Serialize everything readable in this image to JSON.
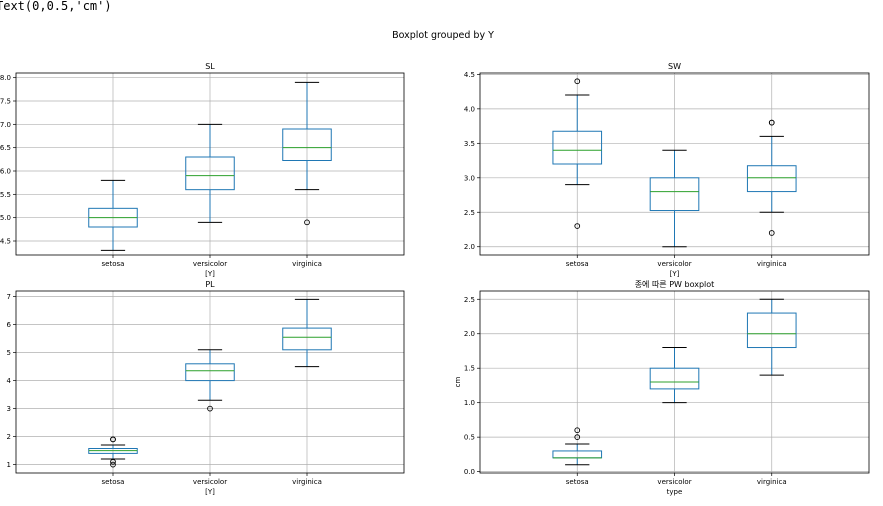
{
  "output_text": "Text(0,0.5,'cm')",
  "suptitle": "Boxplot grouped by Y",
  "chart_data": [
    {
      "type": "box",
      "title": "SL",
      "xlabel": "[Y]",
      "ylabel": "",
      "categories": [
        "setosa",
        "versicolor",
        "virginica"
      ],
      "ylim": [
        4.2,
        8.1
      ],
      "yticks": [
        4.5,
        5.0,
        5.5,
        6.0,
        6.5,
        7.0,
        7.5,
        8.0
      ],
      "ytick_labels": [
        "4.5",
        "5.0",
        "5.5",
        "6.0",
        "6.5",
        "7.0",
        "7.5",
        "8.0"
      ],
      "boxes": [
        {
          "whislo": 4.3,
          "q1": 4.8,
          "med": 5.0,
          "q3": 5.2,
          "whishi": 5.8,
          "fliers": []
        },
        {
          "whislo": 4.9,
          "q1": 5.6,
          "med": 5.9,
          "q3": 6.3,
          "whishi": 7.0,
          "fliers": []
        },
        {
          "whislo": 5.6,
          "q1": 6.225,
          "med": 6.5,
          "q3": 6.9,
          "whishi": 7.9,
          "fliers": [
            4.9
          ]
        }
      ]
    },
    {
      "type": "box",
      "title": "SW",
      "xlabel": "[Y]",
      "ylabel": "",
      "categories": [
        "setosa",
        "versicolor",
        "virginica"
      ],
      "ylim": [
        1.88,
        4.52
      ],
      "yticks": [
        2.0,
        2.5,
        3.0,
        3.5,
        4.0,
        4.5
      ],
      "ytick_labels": [
        "2.0",
        "2.5",
        "3.0",
        "3.5",
        "4.0",
        "4.5"
      ],
      "boxes": [
        {
          "whislo": 2.9,
          "q1": 3.2,
          "med": 3.4,
          "q3": 3.675,
          "whishi": 4.2,
          "fliers": [
            4.4,
            2.3
          ]
        },
        {
          "whislo": 2.0,
          "q1": 2.525,
          "med": 2.8,
          "q3": 3.0,
          "whishi": 3.4,
          "fliers": []
        },
        {
          "whislo": 2.5,
          "q1": 2.8,
          "med": 3.0,
          "q3": 3.175,
          "whishi": 3.6,
          "fliers": [
            3.8,
            3.8,
            2.2
          ]
        }
      ]
    },
    {
      "type": "box",
      "title": "PL",
      "xlabel": "[Y]",
      "ylabel": "",
      "categories": [
        "setosa",
        "versicolor",
        "virginica"
      ],
      "ylim": [
        0.7,
        7.2
      ],
      "yticks": [
        1,
        2,
        3,
        4,
        5,
        6,
        7
      ],
      "ytick_labels": [
        "1",
        "2",
        "3",
        "4",
        "5",
        "6",
        "7"
      ],
      "boxes": [
        {
          "whislo": 1.2,
          "q1": 1.4,
          "med": 1.5,
          "q3": 1.575,
          "whishi": 1.7,
          "fliers": [
            1.9,
            1.9,
            1.0,
            1.1
          ]
        },
        {
          "whislo": 3.3,
          "q1": 4.0,
          "med": 4.35,
          "q3": 4.6,
          "whishi": 5.1,
          "fliers": [
            3.0
          ]
        },
        {
          "whislo": 4.5,
          "q1": 5.1,
          "med": 5.55,
          "q3": 5.875,
          "whishi": 6.9,
          "fliers": []
        }
      ]
    },
    {
      "type": "box",
      "title": "종에 따른 PW boxplot",
      "xlabel": "type",
      "ylabel": "cm",
      "categories": [
        "setosa",
        "versicolor",
        "virginica"
      ],
      "ylim": [
        -0.02,
        2.62
      ],
      "yticks": [
        0.0,
        0.5,
        1.0,
        1.5,
        2.0,
        2.5
      ],
      "ytick_labels": [
        "0.0",
        "0.5",
        "1.0",
        "1.5",
        "2.0",
        "2.5"
      ],
      "boxes": [
        {
          "whislo": 0.1,
          "q1": 0.2,
          "med": 0.2,
          "q3": 0.3,
          "whishi": 0.4,
          "fliers": [
            0.5,
            0.6
          ]
        },
        {
          "whislo": 1.0,
          "q1": 1.2,
          "med": 1.3,
          "q3": 1.5,
          "whishi": 1.8,
          "fliers": []
        },
        {
          "whislo": 1.4,
          "q1": 1.8,
          "med": 2.0,
          "q3": 2.3,
          "whishi": 2.5,
          "fliers": []
        }
      ]
    }
  ],
  "colors": {
    "box": "#1f77b4",
    "median": "#2ca02c",
    "whisker": "#1f77b4",
    "cap": "#000000",
    "grid": "#b0b0b0",
    "spine": "#000000"
  }
}
